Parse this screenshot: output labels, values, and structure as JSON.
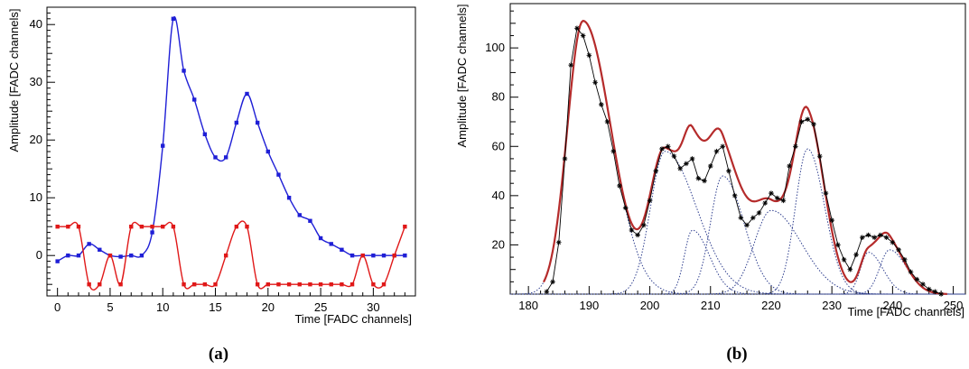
{
  "figure": {
    "caption_a": "(a)",
    "caption_b": "(b)"
  },
  "chart_data": [
    {
      "type": "line",
      "panel": "a",
      "xlabel": "Time [FADC channels]",
      "ylabel": "Amplitude [FADC channels]",
      "xlim": [
        -1,
        34
      ],
      "ylim": [
        -7,
        43
      ],
      "xticks": [
        0,
        5,
        10,
        15,
        20,
        25,
        30
      ],
      "yticks": [
        0,
        10,
        20,
        30,
        40
      ],
      "grid": false,
      "series": [
        {
          "color": "#1f1fd6",
          "marker": "square",
          "x": [
            0,
            1,
            2,
            3,
            4,
            5,
            6,
            7,
            8,
            9,
            10,
            11,
            12,
            13,
            14,
            15,
            16,
            17,
            18,
            19,
            20,
            21,
            22,
            23,
            24,
            25,
            26,
            27,
            28,
            29,
            30,
            31,
            32,
            33
          ],
          "values": [
            -1,
            0,
            0,
            2,
            1,
            0,
            -0.2,
            0,
            0,
            4,
            19,
            41,
            32,
            27,
            21,
            17,
            17,
            23,
            28,
            23,
            18,
            14,
            10,
            7,
            6,
            3,
            2,
            1,
            0,
            0,
            0,
            0,
            0,
            0
          ]
        },
        {
          "color": "#e01818",
          "marker": "square",
          "x": [
            0,
            1,
            2,
            3,
            4,
            5,
            6,
            7,
            8,
            9,
            10,
            11,
            12,
            13,
            14,
            15,
            16,
            17,
            18,
            19,
            20,
            21,
            22,
            23,
            24,
            25,
            26,
            27,
            28,
            29,
            30,
            31,
            32,
            33
          ],
          "values": [
            5,
            5,
            5,
            -5,
            -5,
            0,
            -5,
            5,
            5,
            5,
            5,
            5,
            -5,
            -5,
            -5,
            -5,
            0,
            5,
            5,
            -5,
            -5,
            -5,
            -5,
            -5,
            -5,
            -5,
            -5,
            -5,
            -5,
            0,
            -5,
            -5,
            0,
            5
          ]
        }
      ]
    },
    {
      "type": "line",
      "panel": "b",
      "xlabel": "Time [FADC channels]",
      "ylabel": "Amplitude [FADC channels]",
      "xlim": [
        177,
        252
      ],
      "ylim": [
        0,
        118
      ],
      "xticks": [
        180,
        190,
        200,
        210,
        220,
        230,
        240,
        250
      ],
      "yticks": [
        20,
        40,
        60,
        80,
        100
      ],
      "grid": false,
      "data_series": {
        "color": "#000000",
        "marker": "star",
        "x": [
          183,
          184,
          185,
          186,
          187,
          188,
          189,
          190,
          191,
          192,
          193,
          194,
          195,
          196,
          197,
          198,
          199,
          200,
          201,
          202,
          203,
          204,
          205,
          206,
          207,
          208,
          209,
          210,
          211,
          212,
          213,
          214,
          215,
          216,
          217,
          218,
          219,
          220,
          221,
          222,
          223,
          224,
          225,
          226,
          227,
          228,
          229,
          230,
          231,
          232,
          233,
          234,
          235,
          236,
          237,
          238,
          239,
          240,
          241,
          242,
          243,
          244,
          245,
          246,
          247,
          248
        ],
        "values": [
          1,
          5,
          21,
          55,
          93,
          108,
          105,
          97,
          86,
          77,
          70,
          58,
          44,
          35,
          26,
          24,
          28,
          38,
          50,
          59,
          60,
          56,
          51,
          53,
          55,
          47,
          46,
          52,
          58,
          60,
          50,
          40,
          31,
          28,
          31,
          33,
          37,
          41,
          39,
          38,
          52,
          60,
          70,
          71,
          69,
          56,
          41,
          30,
          20,
          14,
          10,
          16,
          23,
          24,
          23,
          24,
          23,
          21,
          18,
          14,
          9,
          6,
          4,
          2,
          1,
          0
        ]
      },
      "fit_total": {
        "color": "#b52b2b",
        "components": [
          {
            "amplitude": 111,
            "center": 189,
            "sigma_left": 2.6,
            "sigma_right": 4.6
          },
          {
            "amplitude": 58,
            "center": 202.5,
            "sigma_left": 2.4,
            "sigma_right": 5.2
          },
          {
            "amplitude": 26,
            "center": 207,
            "sigma_left": 1.3,
            "sigma_right": 2.8
          },
          {
            "amplitude": 48,
            "center": 212,
            "sigma_left": 2.0,
            "sigma_right": 3.5
          },
          {
            "amplitude": 34,
            "center": 220,
            "sigma_left": 2.8,
            "sigma_right": 5.0
          },
          {
            "amplitude": 59,
            "center": 226,
            "sigma_left": 2.0,
            "sigma_right": 2.8
          },
          {
            "amplitude": 17,
            "center": 236,
            "sigma_left": 1.3,
            "sigma_right": 2.4
          },
          {
            "amplitude": 18,
            "center": 239.5,
            "sigma_left": 1.6,
            "sigma_right": 2.8
          }
        ]
      },
      "component_color": "#2f3f8f"
    }
  ]
}
